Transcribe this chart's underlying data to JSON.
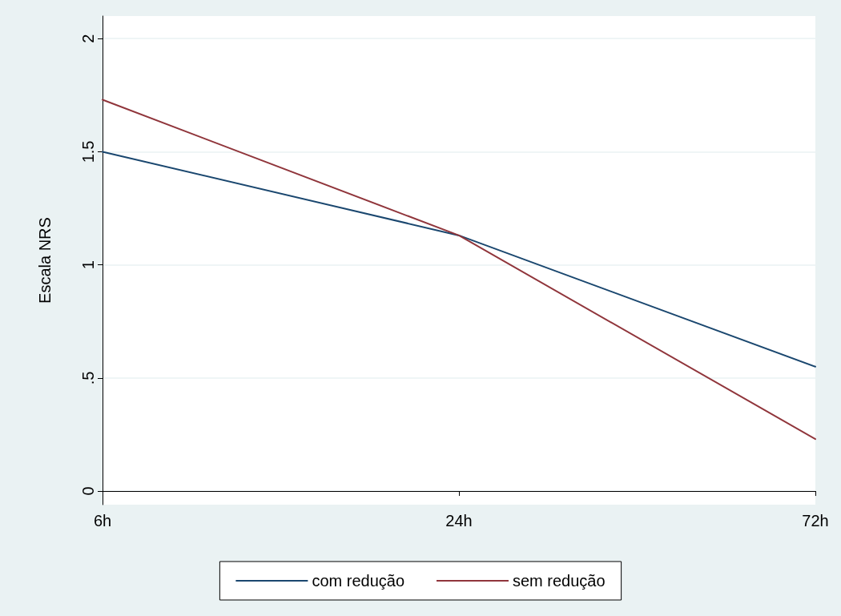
{
  "chart_data": {
    "type": "line",
    "ylabel": "Escala NRS",
    "categories": [
      "6h",
      "24h",
      "72h"
    ],
    "series": [
      {
        "name": "com redução",
        "color": "#1a476f",
        "values": [
          1.5,
          1.13,
          0.55
        ]
      },
      {
        "name": "sem redução",
        "color": "#90353b",
        "values": [
          1.73,
          1.13,
          0.23
        ]
      }
    ],
    "ylim": [
      -0.06,
      2.1
    ],
    "yticks": [
      0,
      {
        "value": 0.5,
        "label": ".5"
      },
      1,
      1.5,
      2
    ],
    "grid": "y",
    "legend": "bottom",
    "marker": "none",
    "line_style": "solid"
  }
}
